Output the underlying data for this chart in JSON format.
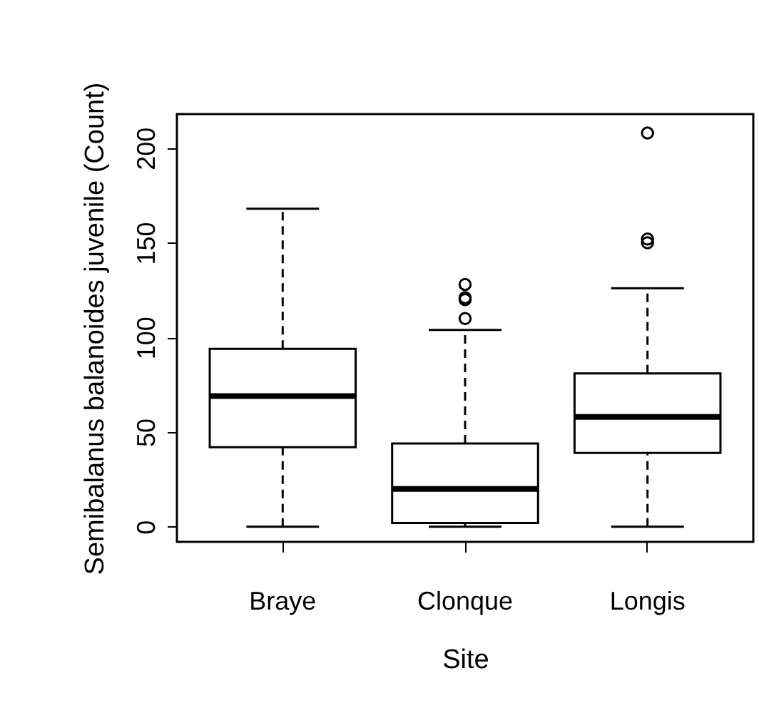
{
  "chart_data": {
    "type": "box",
    "xlabel": "Site",
    "ylabel": "Semibalanus balanoides juvenile (Count)",
    "categories": [
      "Braye",
      "Clonque",
      "Longis"
    ],
    "boxes": [
      {
        "low": 0,
        "q1": 42,
        "median": 69,
        "q3": 94,
        "high": 168
      },
      {
        "low": 0,
        "q1": 2,
        "median": 20,
        "q3": 44,
        "high": 104,
        "outliers": [
          110,
          120,
          121,
          128
        ]
      },
      {
        "low": 0,
        "q1": 39,
        "median": 58,
        "q3": 81,
        "high": 126,
        "outliers": [
          150,
          152,
          208
        ]
      }
    ],
    "ylim": [
      -8,
      218
    ],
    "yticks": [
      0,
      50,
      100,
      150,
      200
    ]
  }
}
